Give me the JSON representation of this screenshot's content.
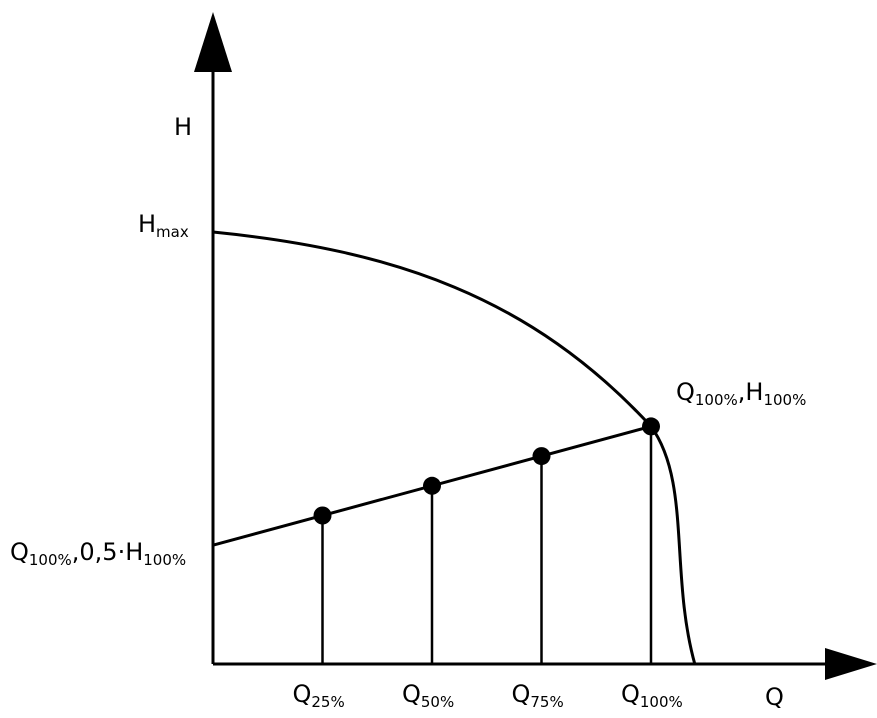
{
  "axes": {
    "y_label": "H",
    "x_label": "Q"
  },
  "labels": {
    "hmax": {
      "main": "H",
      "sub": "max"
    },
    "duty_point": [
      {
        "t": "Q",
        "s": "100%"
      },
      {
        "t": ",H",
        "s": "100%"
      }
    ],
    "start_point": [
      {
        "t": "Q",
        "s": "100%"
      },
      {
        "t": ",0,5·H",
        "s": "100%"
      }
    ],
    "x_ticks": [
      {
        "t": "Q",
        "s": "25%"
      },
      {
        "t": "Q",
        "s": "50%"
      },
      {
        "t": "Q",
        "s": "75%"
      },
      {
        "t": "Q",
        "s": "100%"
      }
    ]
  },
  "chart_data": {
    "type": "line",
    "series": [
      {
        "points": [
          [
            0,
            1.0
          ],
          [
            1.0,
            0.55
          ],
          [
            1.1,
            0.0
          ]
        ]
      },
      {
        "points": [
          [
            0,
            0.275
          ],
          [
            1.0,
            0.55
          ]
        ],
        "markers": [
          [
            0.25,
            0.34375
          ],
          [
            0.5,
            0.4125
          ],
          [
            0.75,
            0.48125
          ],
          [
            1.0,
            0.55
          ]
        ]
      }
    ]
  }
}
